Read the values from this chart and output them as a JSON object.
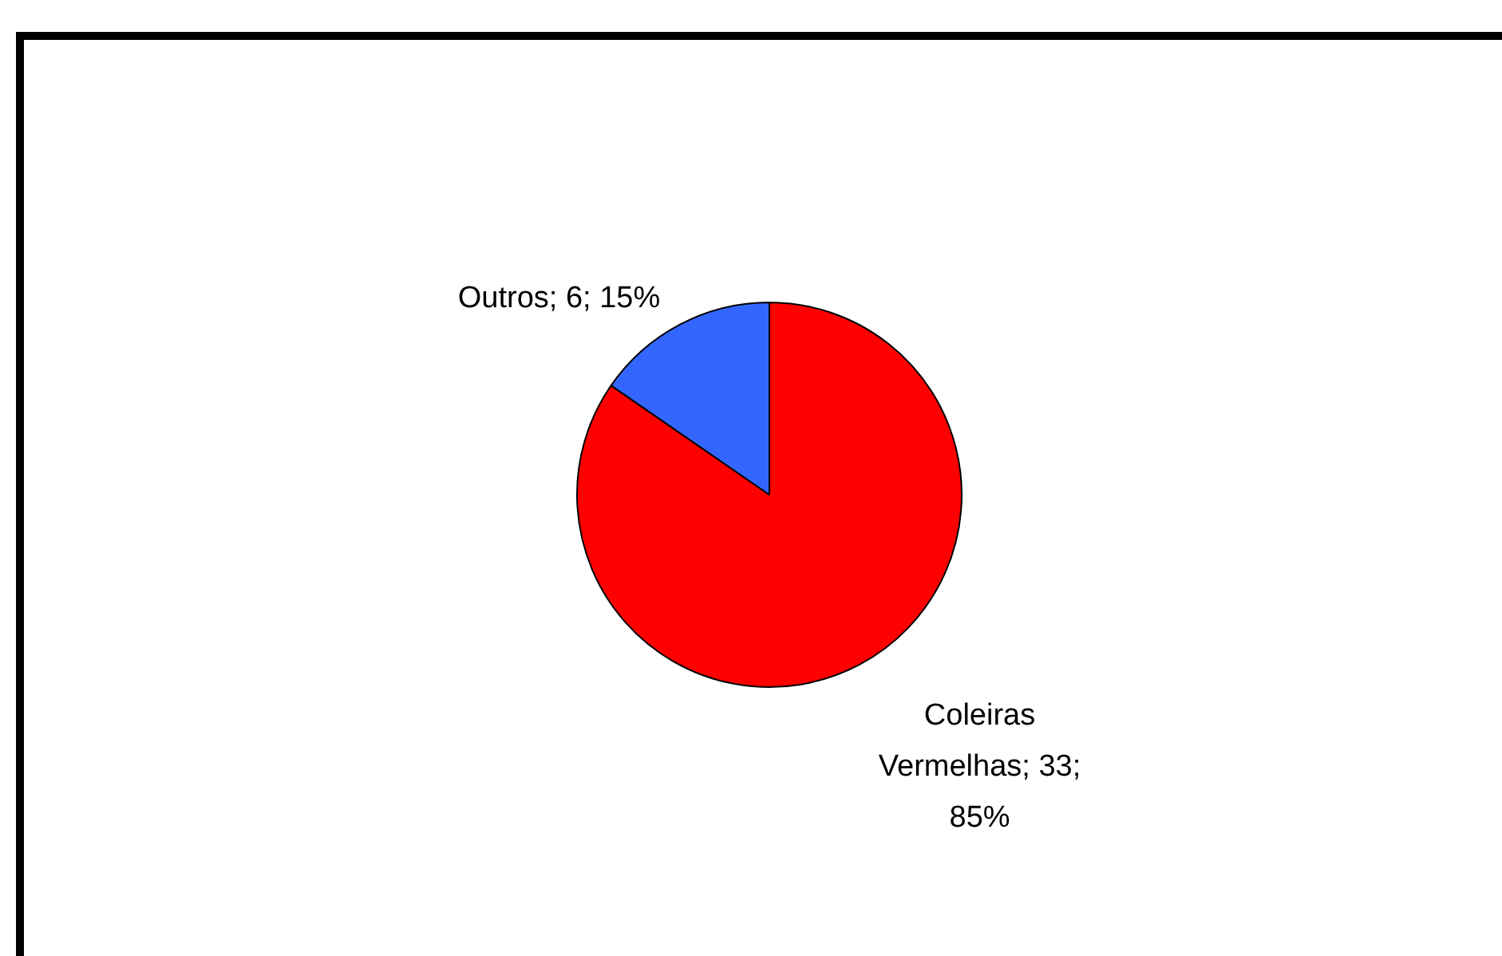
{
  "chart_data": {
    "type": "pie",
    "categories": [
      "Coleiras Vermelhas",
      "Outros"
    ],
    "values": [
      33,
      6
    ],
    "colors": [
      "#ff0000",
      "#3366ff"
    ],
    "value_labels": [
      "33; 85%",
      "6; 15%"
    ],
    "legend": false
  }
}
